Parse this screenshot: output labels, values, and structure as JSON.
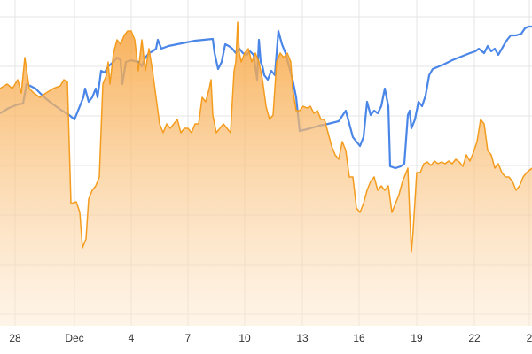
{
  "chart_data": {
    "type": "area-line",
    "xlim": [
      0,
      600
    ],
    "ylim": [
      0,
      368
    ],
    "xticks": [
      {
        "value": 17,
        "label": "28"
      },
      {
        "value": 84,
        "label": "Dec"
      },
      {
        "value": 148,
        "label": "4"
      },
      {
        "value": 212,
        "label": "7"
      },
      {
        "value": 276,
        "label": "10"
      },
      {
        "value": 341,
        "label": "13"
      },
      {
        "value": 405,
        "label": "16"
      },
      {
        "value": 470,
        "label": "19"
      },
      {
        "value": 535,
        "label": "22"
      },
      {
        "value": 597,
        "label": "2"
      }
    ],
    "yticks": [
      13,
      69,
      125,
      181,
      237,
      293,
      349
    ],
    "grid": true,
    "series": [
      {
        "kind": "line",
        "color": "#4a86e8",
        "x": [
          0,
          5,
          10,
          15,
          20,
          26,
          30,
          40,
          50,
          60,
          70,
          78,
          84,
          90,
          94,
          96,
          100,
          104,
          108,
          110,
          114,
          118,
          122,
          128,
          132,
          136,
          138,
          142,
          148,
          156,
          160,
          164,
          168,
          172,
          176,
          178,
          182,
          190,
          200,
          210,
          220,
          230,
          240,
          242,
          246,
          250,
          254,
          258,
          262,
          266,
          270,
          274,
          278,
          282,
          286,
          290,
          292,
          294,
          296,
          298,
          302,
          306,
          310,
          314,
          318,
          322,
          326,
          330,
          334,
          338,
          350,
          360,
          370,
          382,
          390,
          394,
          398,
          402,
          406,
          410,
          414,
          418,
          422,
          426,
          430,
          434,
          438,
          440,
          446,
          452,
          456,
          460,
          462,
          464,
          468,
          472,
          476,
          480,
          484,
          488,
          500,
          510,
          520,
          530,
          536,
          540,
          546,
          550,
          554,
          558,
          562,
          566,
          570,
          572,
          576,
          582,
          588,
          592,
          596,
          600
        ],
        "values": [
          240,
          243,
          246,
          248,
          250,
          251,
          273,
          268,
          258,
          250,
          243,
          238,
          233,
          248,
          258,
          268,
          253,
          258,
          268,
          258,
          288,
          286,
          293,
          298,
          303,
          300,
          273,
          298,
          300,
          298,
          293,
          303,
          308,
          310,
          313,
          323,
          313,
          316,
          318,
          320,
          322,
          323,
          324,
          308,
          290,
          298,
          318,
          316,
          313,
          308,
          313,
          308,
          306,
          310,
          306,
          278,
          323,
          298,
          293,
          283,
          278,
          288,
          283,
          333,
          318,
          308,
          293,
          278,
          258,
          220,
          223,
          226,
          228,
          231,
          243,
          228,
          213,
          208,
          203,
          213,
          253,
          238,
          243,
          240,
          248,
          268,
          248,
          180,
          178,
          180,
          183,
          238,
          243,
          223,
          233,
          253,
          248,
          260,
          283,
          290,
          295,
          300,
          304,
          308,
          310,
          313,
          308,
          316,
          310,
          313,
          306,
          313,
          320,
          323,
          328,
          328,
          330,
          336,
          338,
          338
        ]
      },
      {
        "kind": "area",
        "color": "#f39c1e",
        "x": [
          0,
          8,
          14,
          20,
          24,
          28,
          33,
          38,
          45,
          52,
          60,
          68,
          72,
          76,
          80,
          86,
          90,
          93,
          97,
          100,
          104,
          108,
          112,
          116,
          120,
          122,
          124,
          128,
          132,
          136,
          140,
          144,
          148,
          152,
          156,
          160,
          164,
          168,
          172,
          176,
          180,
          184,
          188,
          192,
          196,
          200,
          204,
          208,
          212,
          216,
          220,
          224,
          228,
          232,
          236,
          238,
          240,
          244,
          248,
          252,
          256,
          260,
          264,
          266,
          268,
          270,
          272,
          276,
          280,
          284,
          288,
          292,
          296,
          300,
          304,
          308,
          312,
          316,
          320,
          324,
          328,
          330,
          334,
          338,
          342,
          346,
          350,
          354,
          358,
          362,
          366,
          370,
          374,
          378,
          382,
          386,
          390,
          394,
          398,
          402,
          406,
          410,
          414,
          418,
          422,
          426,
          430,
          434,
          438,
          442,
          446,
          450,
          454,
          458,
          460,
          462,
          464,
          466,
          470,
          474,
          478,
          482,
          486,
          490,
          494,
          498,
          502,
          506,
          510,
          514,
          518,
          522,
          526,
          530,
          534,
          538,
          542,
          546,
          550,
          554,
          558,
          562,
          566,
          570,
          574,
          578,
          582,
          586,
          590,
          594,
          600
        ],
        "values": [
          268,
          273,
          268,
          278,
          263,
          303,
          268,
          263,
          258,
          263,
          268,
          271,
          278,
          276,
          138,
          140,
          128,
          88,
          98,
          143,
          153,
          158,
          168,
          273,
          283,
          298,
          273,
          308,
          323,
          318,
          328,
          333,
          333,
          323,
          288,
          323,
          288,
          313,
          288,
          258,
          228,
          218,
          228,
          223,
          228,
          233,
          218,
          223,
          223,
          218,
          228,
          228,
          258,
          253,
          268,
          278,
          238,
          218,
          223,
          228,
          223,
          218,
          288,
          298,
          343,
          308,
          298,
          308,
          313,
          298,
          308,
          298,
          278,
          248,
          233,
          238,
          298,
          308,
          303,
          308,
          298,
          268,
          243,
          243,
          248,
          246,
          248,
          240,
          243,
          233,
          233,
          218,
          203,
          193,
          188,
          208,
          198,
          168,
          168,
          133,
          128,
          138,
          153,
          163,
          168,
          153,
          158,
          153,
          158,
          128,
          138,
          148,
          163,
          173,
          178,
          128,
          83,
          108,
          173,
          173,
          183,
          185,
          181,
          186,
          183,
          185,
          183,
          186,
          183,
          188,
          185,
          180,
          193,
          186,
          196,
          208,
          233,
          228,
          198,
          193,
          178,
          183,
          173,
          168,
          168,
          163,
          153,
          158,
          168,
          173,
          178
        ]
      }
    ]
  }
}
